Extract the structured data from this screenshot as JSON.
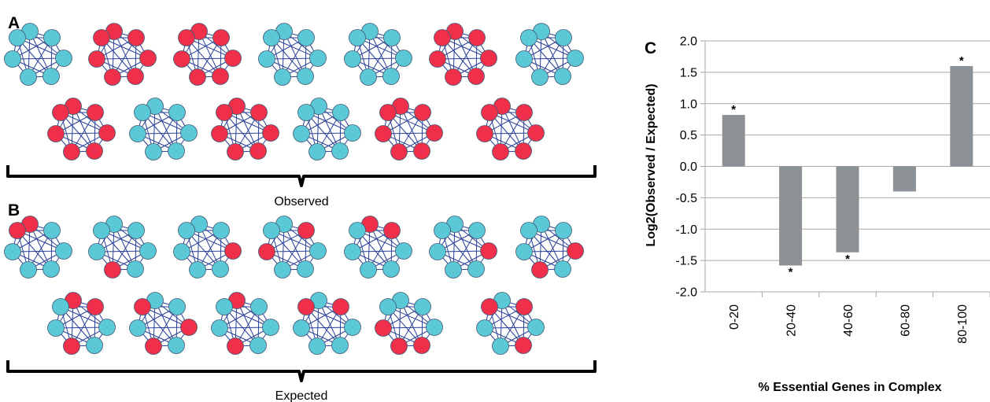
{
  "panels": {
    "a": "A",
    "b": "B",
    "c": "C"
  },
  "captions": {
    "observed": "Observed",
    "expected": "Expected"
  },
  "colors": {
    "essential": "#f0304a",
    "nonessential": "#5bc8d8",
    "edge": "#2a3f9a",
    "node_stroke": "#3f5a73",
    "bar": "#8c9196",
    "grid": "#a8a8a8"
  },
  "networks": {
    "observed": [
      [
        "n",
        "n",
        "n",
        "n",
        "n",
        "n",
        "n"
      ],
      [
        "e",
        "e",
        "e",
        "e",
        "e",
        "e",
        "e"
      ],
      [
        "e",
        "e",
        "e",
        "e",
        "e",
        "e",
        "e"
      ],
      [
        "n",
        "n",
        "n",
        "n",
        "n",
        "n",
        "n"
      ],
      [
        "n",
        "n",
        "n",
        "n",
        "n",
        "n",
        "n"
      ],
      [
        "e",
        "e",
        "e",
        "e",
        "e",
        "e",
        "e"
      ],
      [
        "n",
        "n",
        "n",
        "n",
        "n",
        "n",
        "n"
      ],
      [
        "e",
        "e",
        "e",
        "e",
        "e",
        "e",
        "e"
      ],
      [
        "n",
        "n",
        "n",
        "n",
        "n",
        "n",
        "n"
      ],
      [
        "e",
        "e",
        "e",
        "e",
        "e",
        "e",
        "e"
      ],
      [
        "n",
        "n",
        "n",
        "n",
        "n",
        "n",
        "n"
      ],
      [
        "e",
        "e",
        "e",
        "e",
        "e",
        "e",
        "e"
      ],
      [
        "e",
        "e",
        "e",
        "e",
        "e",
        "e",
        "e"
      ]
    ],
    "expected": [
      [
        "e",
        "n",
        "n",
        "n",
        "n",
        "n",
        "e"
      ],
      [
        "n",
        "n",
        "n",
        "n",
        "e",
        "n",
        "n"
      ],
      [
        "n",
        "n",
        "e",
        "n",
        "n",
        "n",
        "n"
      ],
      [
        "n",
        "e",
        "n",
        "n",
        "n",
        "e",
        "n"
      ],
      [
        "e",
        "e",
        "n",
        "n",
        "n",
        "n",
        "n"
      ],
      [
        "n",
        "n",
        "e",
        "n",
        "n",
        "n",
        "n"
      ],
      [
        "n",
        "n",
        "e",
        "n",
        "e",
        "n",
        "n"
      ],
      [
        "e",
        "e",
        "n",
        "n",
        "e",
        "n",
        "n"
      ],
      [
        "n",
        "n",
        "e",
        "n",
        "e",
        "n",
        "e"
      ],
      [
        "e",
        "n",
        "n",
        "n",
        "e",
        "n",
        "n"
      ],
      [
        "n",
        "e",
        "n",
        "n",
        "n",
        "n",
        "e"
      ],
      [
        "n",
        "n",
        "n",
        "e",
        "e",
        "e",
        "n"
      ],
      [
        "n",
        "e",
        "n",
        "e",
        "n",
        "n",
        "e"
      ]
    ]
  },
  "chart_data": {
    "type": "bar",
    "categories": [
      "0-20",
      "20-40",
      "40-60",
      "60-80",
      "80-100"
    ],
    "values": [
      0.82,
      -1.58,
      -1.37,
      -0.4,
      1.6
    ],
    "significant": [
      true,
      true,
      true,
      false,
      true
    ],
    "significance_marker": "*",
    "xlabel": "% Essential Genes in Complex",
    "ylabel": "Log2(Observed / Expected)",
    "ylim": [
      -2.0,
      2.0
    ],
    "yticks": [
      "2.0",
      "1.5",
      "1.0",
      "0.5",
      "0.0",
      "-0.5",
      "-1.0",
      "-1.5",
      "-2.0"
    ],
    "ytick_values": [
      2.0,
      1.5,
      1.0,
      0.5,
      0.0,
      -0.5,
      -1.0,
      -1.5,
      -2.0
    ],
    "grid": true,
    "legend": "none"
  }
}
